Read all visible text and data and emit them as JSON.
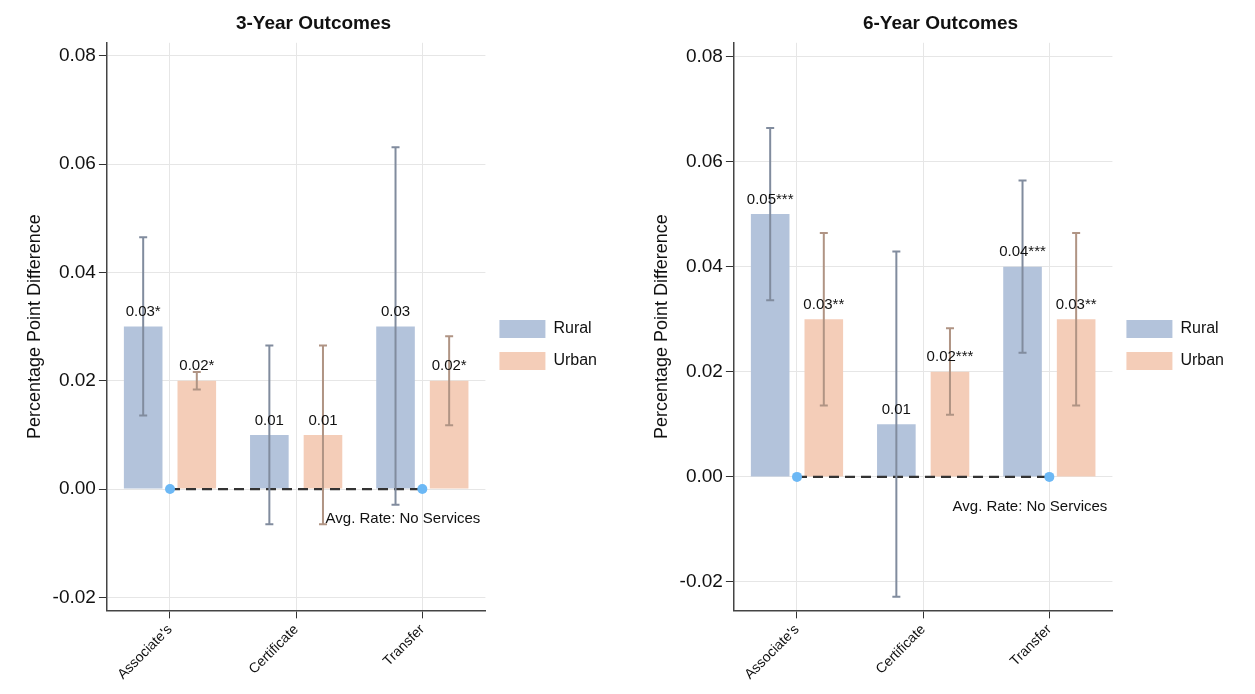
{
  "chart_data": [
    {
      "type": "bar",
      "title": "3-Year Outcomes",
      "ylabel": "Percentage Point Difference",
      "categories": [
        "Associate's",
        "Certificate",
        "Transfer"
      ],
      "ylim": [
        -0.0224,
        0.0824
      ],
      "yticks": [
        {
          "value": -0.02,
          "label": "-0.02"
        },
        {
          "value": 0,
          "label": "0.00"
        },
        {
          "value": 0.02,
          "label": "0.02"
        },
        {
          "value": 0.04,
          "label": "0.04"
        },
        {
          "value": 0.06,
          "label": "0.06"
        },
        {
          "value": 0.08,
          "label": "0.08"
        }
      ],
      "grid": true,
      "legend": "right",
      "series": [
        {
          "name": "Rural",
          "color": "#b3c3db",
          "values": [
            0.03,
            0.01,
            0.03
          ],
          "errors": [
            [
              0.0136,
              0.0465
            ],
            [
              -0.0065,
              0.0265
            ],
            [
              -0.0029,
              0.0631
            ]
          ],
          "value_labels": [
            "0.03*",
            "0.01",
            "0.03"
          ]
        },
        {
          "name": "Urban",
          "color": "#f4cdb8",
          "values": [
            0.02,
            0.01,
            0.02
          ],
          "errors": [
            [
              0.0184,
              0.0216
            ],
            [
              -0.0065,
              0.0265
            ],
            [
              0.0118,
              0.0282
            ]
          ],
          "value_labels": [
            "0.02*",
            "0.01",
            "0.02*"
          ]
        },
        {
          "type": "line",
          "color": "#333333",
          "values": [
            0,
            0,
            0
          ],
          "line_style": "dashed",
          "marker": "none"
        },
        {
          "type": "scatter",
          "color": "#6cb8f5",
          "x": [
            "Associate's",
            "Transfer"
          ],
          "values": [
            0,
            0
          ]
        }
      ],
      "annotations": [
        {
          "text": "Avg. Rate: No Services",
          "x": "Transfer",
          "y": 0
        }
      ]
    },
    {
      "type": "bar",
      "title": "6-Year Outcomes",
      "ylabel": "Percentage Point Difference",
      "categories": [
        "Associate's",
        "Certificate",
        "Transfer"
      ],
      "ylim": [
        -0.0254,
        0.0826
      ],
      "yticks": [
        {
          "value": -0.02,
          "label": "-0.02"
        },
        {
          "value": 0,
          "label": "0.00"
        },
        {
          "value": 0.02,
          "label": "0.02"
        },
        {
          "value": 0.04,
          "label": "0.04"
        },
        {
          "value": 0.06,
          "label": "0.06"
        },
        {
          "value": 0.08,
          "label": "0.08"
        }
      ],
      "grid": true,
      "legend": "right",
      "series": [
        {
          "name": "Rural",
          "color": "#b3c3db",
          "values": [
            0.05,
            0.01,
            0.04
          ],
          "errors": [
            [
              0.0336,
              0.0664
            ],
            [
              -0.0228,
              0.0429
            ],
            [
              0.0236,
              0.0564
            ]
          ],
          "value_labels": [
            "0.05***",
            "0.01",
            "0.04***"
          ]
        },
        {
          "name": "Urban",
          "color": "#f4cdb8",
          "values": [
            0.03,
            0.02,
            0.03
          ],
          "errors": [
            [
              0.0136,
              0.0464
            ],
            [
              0.0118,
              0.0283
            ],
            [
              0.0136,
              0.0464
            ]
          ],
          "value_labels": [
            "0.03**",
            "0.02***",
            "0.03**"
          ]
        },
        {
          "type": "line",
          "color": "#333333",
          "values": [
            0,
            0,
            0
          ],
          "line_style": "dashed",
          "marker": "none"
        },
        {
          "type": "scatter",
          "color": "#6cb8f5",
          "x": [
            "Associate's",
            "Transfer"
          ],
          "values": [
            0,
            0
          ]
        }
      ],
      "annotations": [
        {
          "text": "Avg. Rate: No Services",
          "x": "Transfer",
          "y": 0
        }
      ]
    }
  ]
}
